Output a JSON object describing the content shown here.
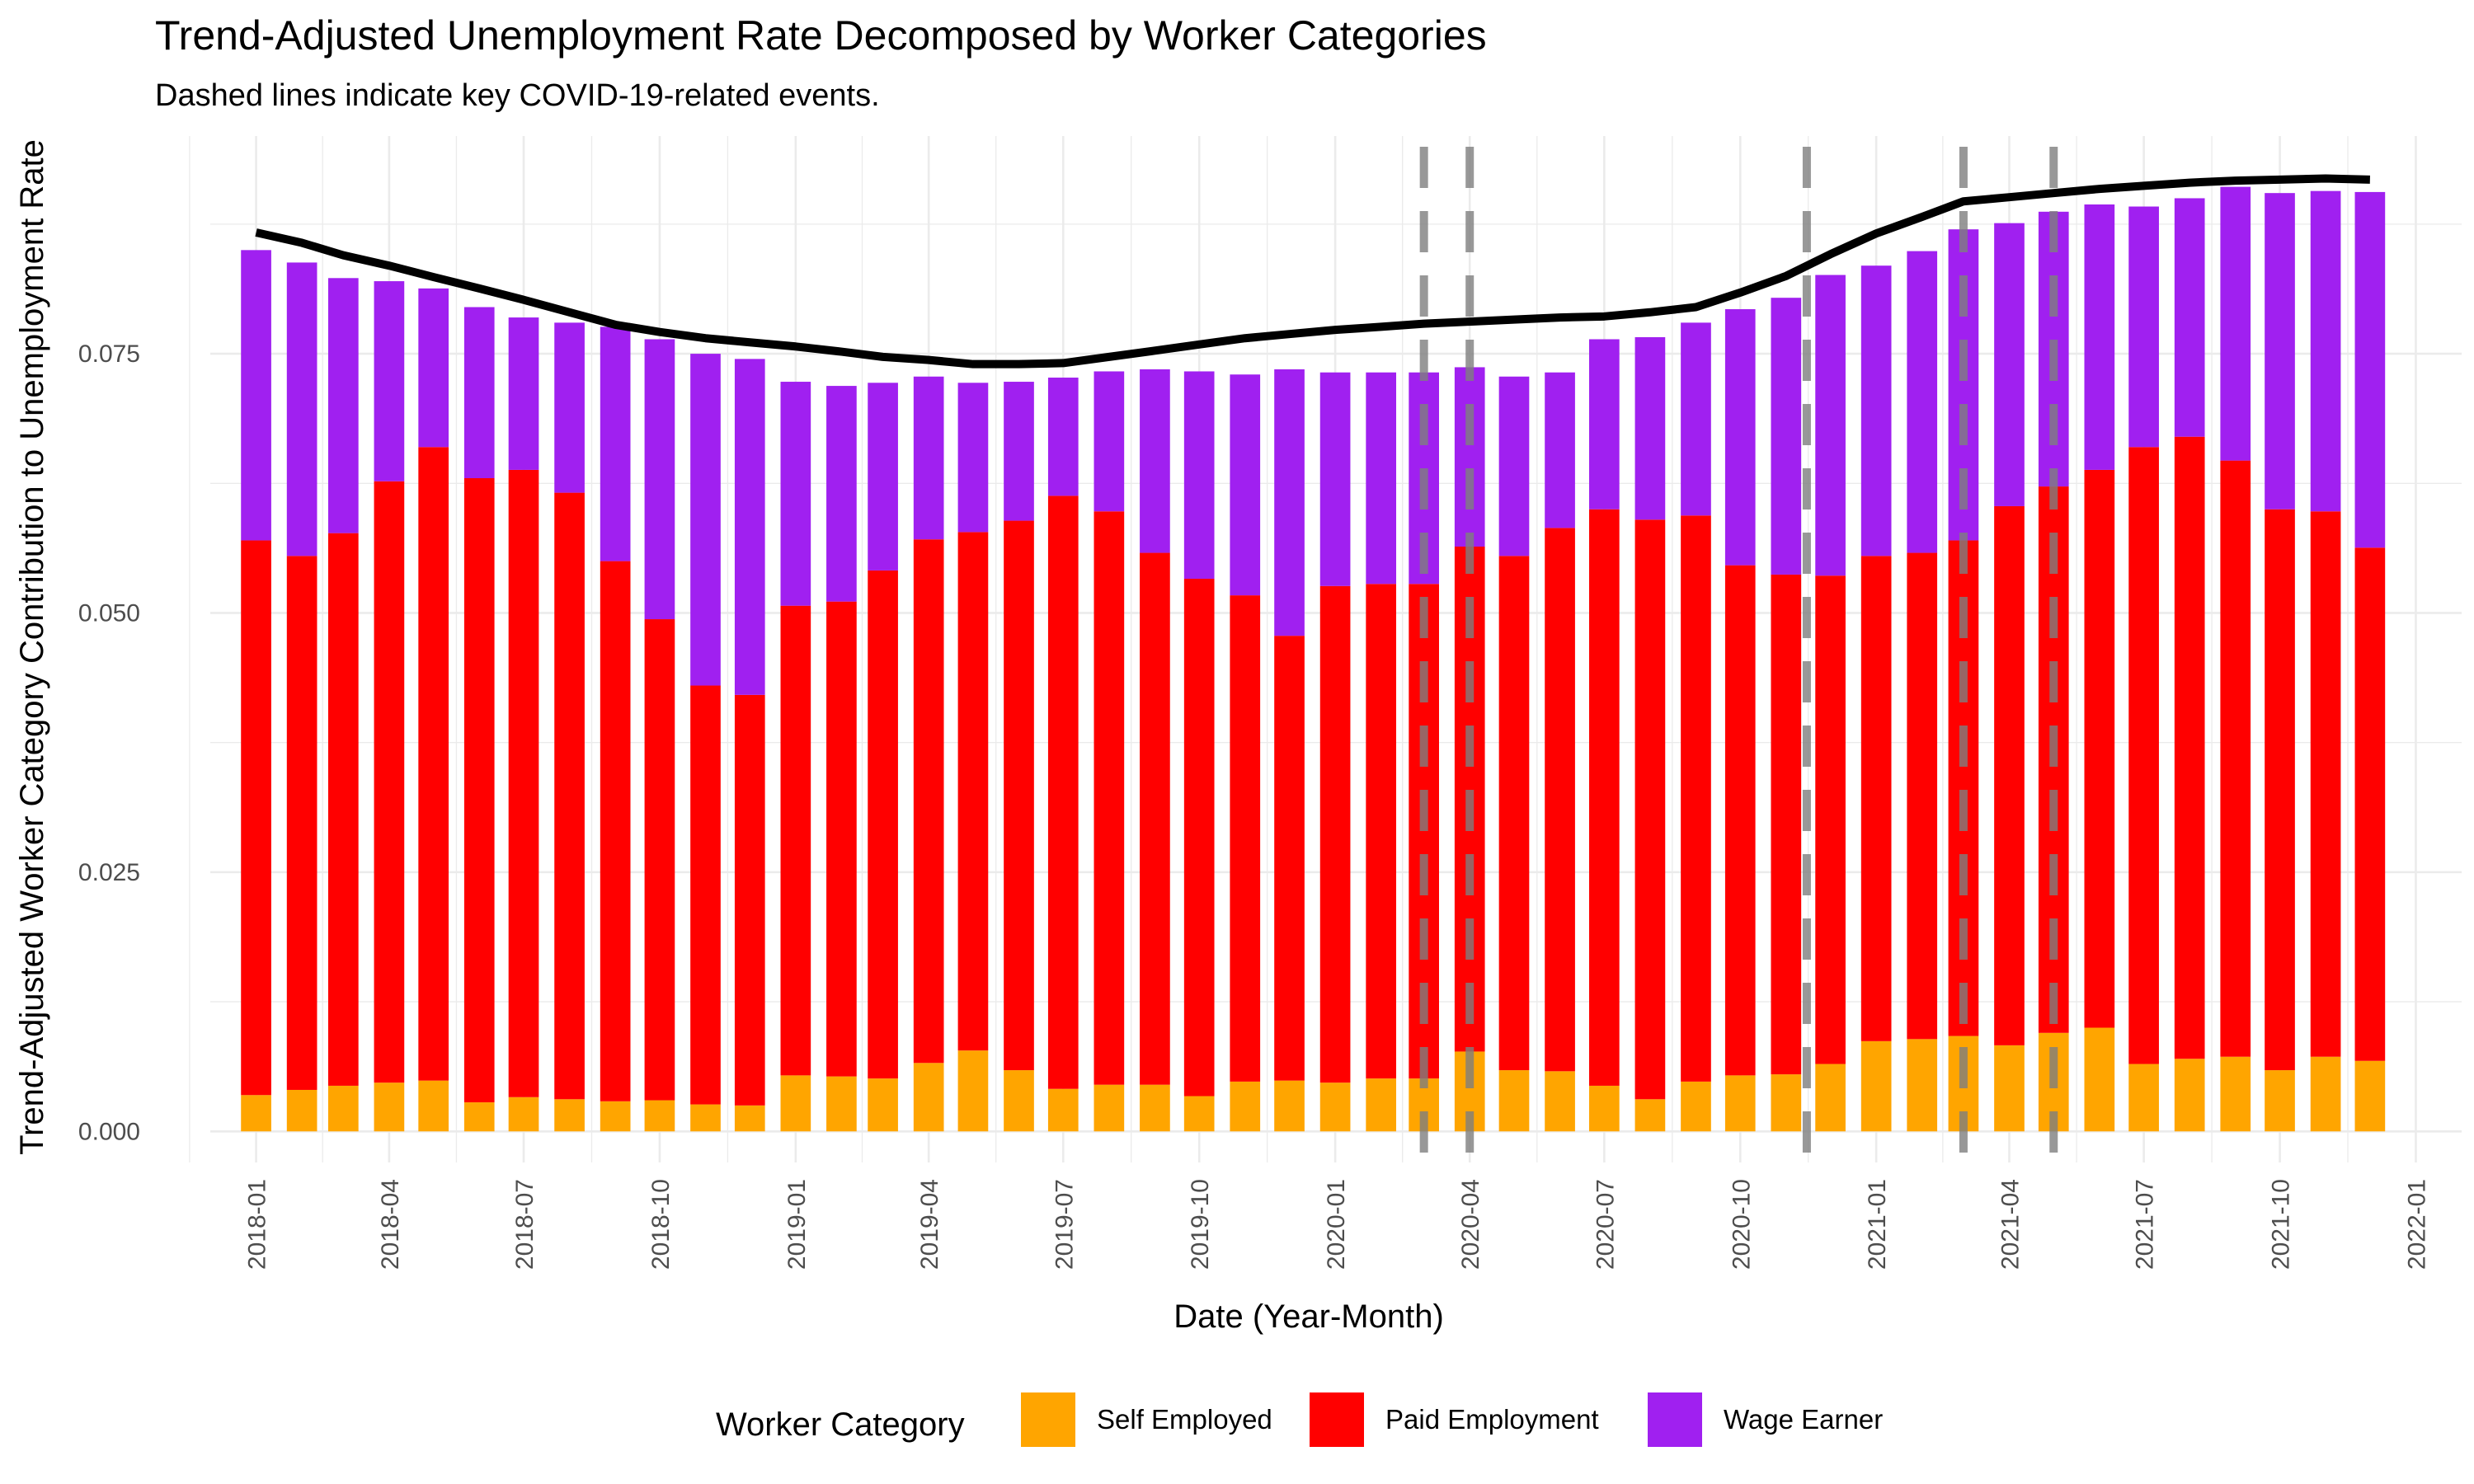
{
  "chart_data": {
    "type": "bar",
    "stacked": true,
    "title": "Trend-Adjusted Unemployment Rate Decomposed by Worker Categories",
    "subtitle": "Dashed lines indicate key COVID-19-related events.",
    "xlabel": "Date (Year-Month)",
    "ylabel": "Trend-Adjusted Worker Category Contribution to Unemployment Rate",
    "ylim": [
      -0.003,
      0.096
    ],
    "yticks": [
      "0.000",
      "0.025",
      "0.050",
      "0.075"
    ],
    "ytick_values": [
      0,
      0.025,
      0.05,
      0.075
    ],
    "xticks": [
      "2018-01",
      "2018-04",
      "2018-07",
      "2018-10",
      "2019-01",
      "2019-04",
      "2019-07",
      "2019-10",
      "2020-01",
      "2020-04",
      "2020-07",
      "2020-10",
      "2021-01",
      "2021-04",
      "2021-07",
      "2021-10",
      "2022-01"
    ],
    "grid": true,
    "legend_position": "bottom",
    "legend_title": "Worker Category",
    "categories": [
      "2018-01",
      "2018-02",
      "2018-03",
      "2018-04",
      "2018-05",
      "2018-06",
      "2018-07",
      "2018-08",
      "2018-09",
      "2018-10",
      "2018-11",
      "2018-12",
      "2019-01",
      "2019-02",
      "2019-03",
      "2019-04",
      "2019-05",
      "2019-06",
      "2019-07",
      "2019-08",
      "2019-09",
      "2019-10",
      "2019-11",
      "2019-12",
      "2020-01",
      "2020-02",
      "2020-03",
      "2020-04",
      "2020-05",
      "2020-06",
      "2020-07",
      "2020-08",
      "2020-09",
      "2020-10",
      "2020-11",
      "2020-12",
      "2021-01",
      "2021-02",
      "2021-03",
      "2021-04",
      "2021-05",
      "2021-06",
      "2021-07",
      "2021-08",
      "2021-09",
      "2021-10",
      "2021-11",
      "2021-12"
    ],
    "series": [
      {
        "name": "Self Employed",
        "color": "#FFA500",
        "values": [
          0.0035,
          0.004,
          0.0044,
          0.0047,
          0.0049,
          0.0028,
          0.0033,
          0.0031,
          0.0029,
          0.003,
          0.0026,
          0.0025,
          0.0054,
          0.0053,
          0.0051,
          0.0066,
          0.0078,
          0.0059,
          0.0041,
          0.0045,
          0.0045,
          0.0034,
          0.0048,
          0.0049,
          0.0047,
          0.0051,
          0.0051,
          0.0077,
          0.0059,
          0.0058,
          0.0044,
          0.0031,
          0.0048,
          0.0054,
          0.0055,
          0.0065,
          0.0087,
          0.0089,
          0.0092,
          0.0083,
          0.0095,
          0.01,
          0.0065,
          0.007,
          0.0072,
          0.0059,
          0.0072,
          0.0068
        ]
      },
      {
        "name": "Paid Employment",
        "color": "#FF0000",
        "values": [
          0.0535,
          0.0515,
          0.0533,
          0.058,
          0.0611,
          0.0602,
          0.0605,
          0.0585,
          0.0521,
          0.0464,
          0.0404,
          0.0396,
          0.0453,
          0.0458,
          0.049,
          0.0505,
          0.05,
          0.053,
          0.0572,
          0.0553,
          0.0513,
          0.0499,
          0.0469,
          0.0429,
          0.0479,
          0.0477,
          0.0477,
          0.0487,
          0.0496,
          0.0524,
          0.0556,
          0.0559,
          0.0546,
          0.0492,
          0.0482,
          0.0471,
          0.0468,
          0.0469,
          0.0478,
          0.052,
          0.0527,
          0.0538,
          0.0595,
          0.06,
          0.0575,
          0.0541,
          0.0526,
          0.0495
        ]
      },
      {
        "name": "Wage Earner",
        "color": "#A020F0",
        "values": [
          0.028,
          0.0283,
          0.0246,
          0.0193,
          0.0153,
          0.0165,
          0.0147,
          0.0164,
          0.0226,
          0.027,
          0.032,
          0.0324,
          0.0216,
          0.0208,
          0.0181,
          0.0157,
          0.0144,
          0.0134,
          0.0114,
          0.0135,
          0.0177,
          0.02,
          0.0213,
          0.0257,
          0.0206,
          0.0204,
          0.0204,
          0.0173,
          0.0173,
          0.015,
          0.0164,
          0.0176,
          0.0186,
          0.0247,
          0.0267,
          0.029,
          0.028,
          0.0291,
          0.03,
          0.0273,
          0.0265,
          0.0256,
          0.0232,
          0.023,
          0.0264,
          0.0305,
          0.0309,
          0.0343
        ]
      }
    ],
    "trend_line": {
      "color": "#000000",
      "values": [
        0.0867,
        0.0857,
        0.0845,
        0.0835,
        0.0824,
        0.0813,
        0.0802,
        0.079,
        0.0778,
        0.0771,
        0.0765,
        0.0761,
        0.0757,
        0.0752,
        0.0747,
        0.0744,
        0.074,
        0.074,
        0.0741,
        0.0747,
        0.0753,
        0.0759,
        0.0765,
        0.0769,
        0.0773,
        0.0776,
        0.0779,
        0.0781,
        0.0783,
        0.0785,
        0.0786,
        0.079,
        0.0795,
        0.0809,
        0.0825,
        0.0846,
        0.0866,
        0.0882,
        0.0897,
        0.0901,
        0.0905,
        0.0909,
        0.0912,
        0.0915,
        0.0917,
        0.0918,
        0.0919,
        0.0918
      ]
    },
    "event_lines": [
      {
        "date": "2020-03-01",
        "color": "#7f7f7f"
      },
      {
        "date": "2020-04-01",
        "color": "#7f7f7f"
      },
      {
        "date": "2020-11-15",
        "color": "#7f7f7f"
      },
      {
        "date": "2021-03-01",
        "color": "#7f7f7f"
      },
      {
        "date": "2021-05-01",
        "color": "#7f7f7f"
      }
    ],
    "x_start": "2017-12-01",
    "x_end": "2022-02-01"
  }
}
